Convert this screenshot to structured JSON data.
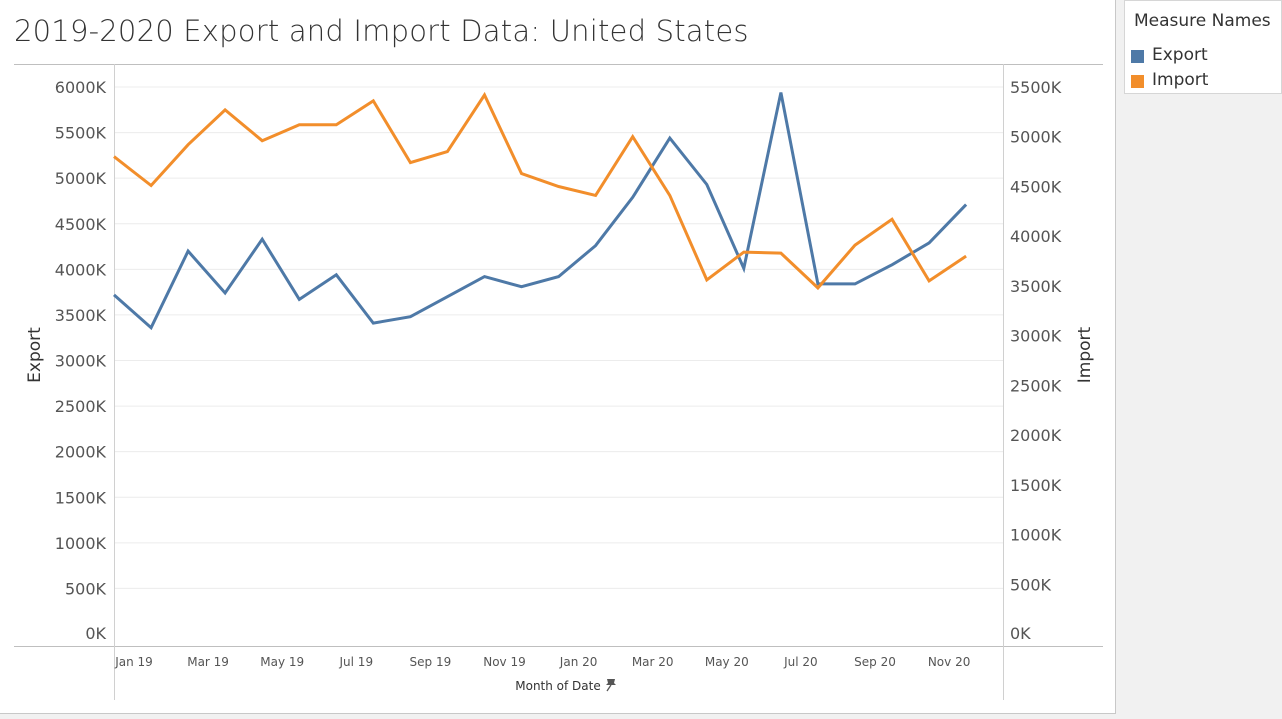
{
  "title": "2019-2020 Export and Import Data: United States",
  "legend": {
    "title": "Measure Names",
    "items": [
      {
        "label": "Export",
        "color": "#4e79a7"
      },
      {
        "label": "Import",
        "color": "#f28e2b"
      }
    ]
  },
  "pin_icon": "pin-icon",
  "chart_data": {
    "type": "line",
    "x": [
      "Jan 19",
      "Feb 19",
      "Mar 19",
      "Apr 19",
      "May 19",
      "Jun 19",
      "Jul 19",
      "Aug 19",
      "Sep 19",
      "Oct 19",
      "Nov 19",
      "Dec 19",
      "Jan 20",
      "Feb 20",
      "Mar 20",
      "Apr 20",
      "May 20",
      "Jun 20",
      "Jul 20",
      "Aug 20",
      "Sep 20",
      "Oct 20",
      "Nov 20",
      "Dec 20"
    ],
    "xticks": [
      "Jan 19",
      "Mar 19",
      "May 19",
      "Jul 19",
      "Sep 19",
      "Nov 19",
      "Jan 20",
      "Mar 20",
      "May 20",
      "Jul 20",
      "Sep 20",
      "Nov 20"
    ],
    "xlabel": "Month of Date",
    "series": [
      {
        "name": "Export",
        "axis": "left",
        "color": "#4e79a7",
        "values": [
          3720,
          3360,
          4200,
          3740,
          4330,
          3670,
          3940,
          3410,
          3480,
          3700,
          3920,
          3810,
          3920,
          4260,
          4790,
          5440,
          4930,
          4010,
          5940,
          3840,
          3840,
          4050,
          4290,
          4710
        ]
      },
      {
        "name": "Import",
        "axis": "right",
        "color": "#f28e2b",
        "values": [
          4800,
          4510,
          4920,
          5270,
          4960,
          5120,
          5120,
          5360,
          4740,
          4850,
          5420,
          4630,
          4500,
          4410,
          5000,
          4410,
          3560,
          3840,
          3830,
          3480,
          3910,
          4170,
          3550,
          3800
        ]
      }
    ],
    "left_axis": {
      "label": "Export",
      "ylim": [
        0,
        6000
      ],
      "ticks": [
        0,
        500,
        1000,
        1500,
        2000,
        2500,
        3000,
        3500,
        4000,
        4500,
        5000,
        5500,
        6000
      ],
      "tick_labels": [
        "0K",
        "500K",
        "1000K",
        "1500K",
        "2000K",
        "2500K",
        "3000K",
        "3500K",
        "4000K",
        "4500K",
        "5000K",
        "5500K",
        "6000K"
      ]
    },
    "right_axis": {
      "label": "Import",
      "ylim": [
        0,
        5500
      ],
      "ticks": [
        0,
        500,
        1000,
        1500,
        2000,
        2500,
        3000,
        3500,
        4000,
        4500,
        5000,
        5500
      ],
      "tick_labels": [
        "0K",
        "500K",
        "1000K",
        "1500K",
        "2000K",
        "2500K",
        "3000K",
        "3500K",
        "4000K",
        "4500K",
        "5000K",
        "5500K"
      ]
    },
    "grid": true,
    "legend_position": "top-right"
  }
}
